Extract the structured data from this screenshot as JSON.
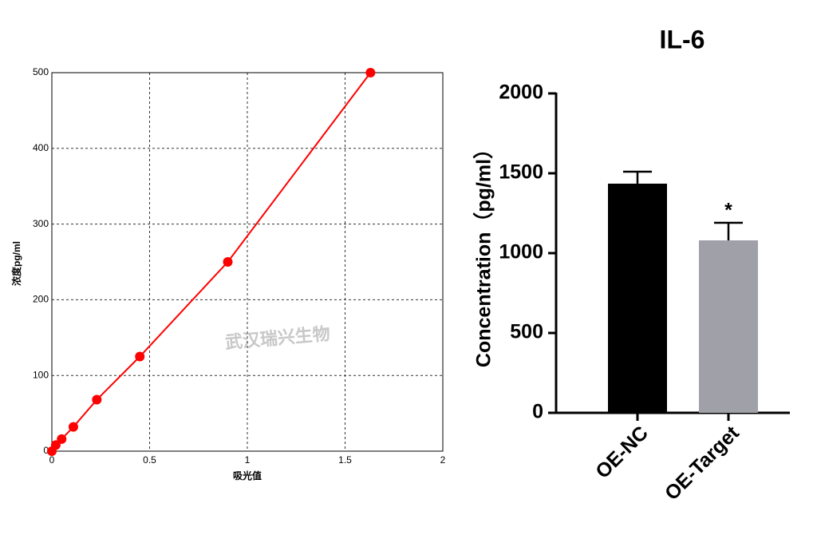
{
  "chart_data": [
    {
      "type": "line",
      "x_label": "吸光值",
      "y_label": "浓度pg/ml",
      "annotation": "武汉瑞兴生物",
      "x": [
        0,
        0.02,
        0.05,
        0.11,
        0.23,
        0.45,
        0.9,
        1.63
      ],
      "values": [
        0,
        8,
        16,
        32,
        68,
        125,
        250,
        500
      ],
      "color": "#ff0000",
      "xlim": [
        0,
        2
      ],
      "xticks": [
        0,
        0.5,
        1,
        1.5,
        2
      ],
      "ylim": [
        0,
        500
      ],
      "yticks": [
        0,
        100,
        200,
        300,
        400,
        500
      ],
      "grid": true
    },
    {
      "type": "bar",
      "title": "IL-6",
      "y_label": "Concentration（pg/ml）",
      "categories": [
        "OE-NC",
        "OE-Target"
      ],
      "values": [
        1435,
        1080
      ],
      "errors": [
        75,
        110
      ],
      "colors": [
        "#000000",
        "#a0a0a8"
      ],
      "annotations": [
        null,
        "*"
      ],
      "ylim": [
        0,
        2000
      ],
      "yticks": [
        0,
        500,
        1000,
        1500,
        2000
      ],
      "grid": false
    }
  ]
}
